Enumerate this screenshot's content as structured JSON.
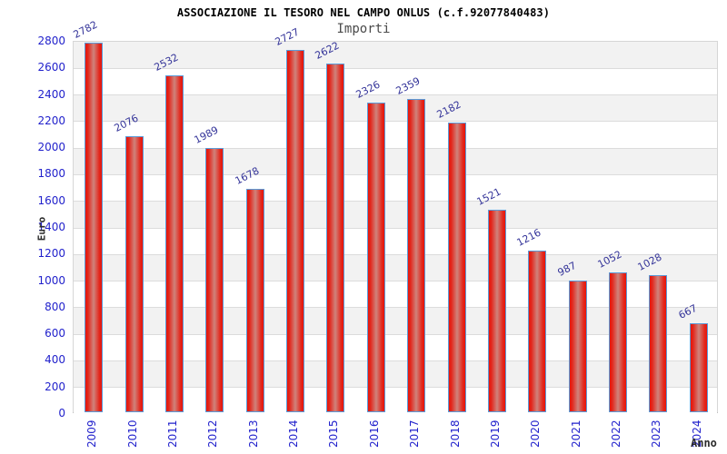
{
  "chart_data": {
    "type": "bar",
    "title": "ASSOCIAZIONE IL TESORO NEL CAMPO ONLUS (c.f.92077840483)",
    "subtitle": "Importi",
    "xlabel": "Anno",
    "ylabel": "Euro",
    "categories": [
      "2009",
      "2010",
      "2011",
      "2012",
      "2013",
      "2014",
      "2015",
      "2016",
      "2017",
      "2018",
      "2019",
      "2020",
      "2021",
      "2022",
      "2023",
      "2024"
    ],
    "values": [
      2782,
      2076,
      2532,
      1989,
      1678,
      2727,
      2622,
      2326,
      2359,
      2182,
      1521,
      1216,
      987,
      1052,
      1028,
      667
    ],
    "ylim": [
      0,
      2800
    ],
    "y_ticks": [
      0,
      200,
      400,
      600,
      800,
      1000,
      1200,
      1400,
      1600,
      1800,
      2000,
      2200,
      2400,
      2600,
      2800
    ],
    "grid": "horizontal-on",
    "legend": "none",
    "colors": {
      "bar_fill_edge": "#e7150a",
      "bar_fill_center": "#cf837c",
      "bar_border": "#5b9bd8",
      "axis_tick_label": "#2222cc",
      "value_label": "#333399",
      "band_shaded": "#f2f2f2",
      "band_plain": "#ffffff",
      "gridline": "#dcdcdc",
      "title_color": "#000000",
      "subtitle_color": "#4a4a4a"
    }
  }
}
